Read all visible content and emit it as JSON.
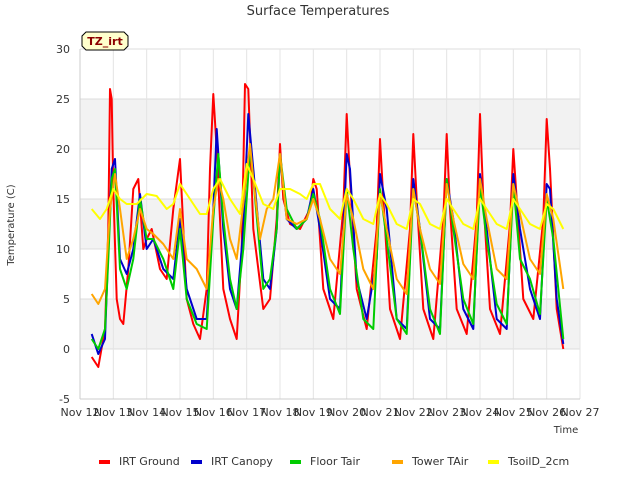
{
  "chart_data": {
    "type": "line",
    "title": "Surface Temperatures",
    "xlabel": "Time",
    "ylabel": "Temperature (C)",
    "badge": "TZ_irt",
    "xlim": [
      12,
      27
    ],
    "ylim": [
      -5,
      30
    ],
    "x_ticks": [
      {
        "v": 12,
        "label": "Nov 12"
      },
      {
        "v": 13,
        "label": "Nov 13"
      },
      {
        "v": 14,
        "label": "Nov 14"
      },
      {
        "v": 15,
        "label": "Nov 15"
      },
      {
        "v": 16,
        "label": "Nov 16"
      },
      {
        "v": 17,
        "label": "Nov 17"
      },
      {
        "v": 18,
        "label": "Nov 18"
      },
      {
        "v": 19,
        "label": "Nov 19"
      },
      {
        "v": 20,
        "label": "Nov 20"
      },
      {
        "v": 21,
        "label": "Nov 21"
      },
      {
        "v": 22,
        "label": "Nov 22"
      },
      {
        "v": 23,
        "label": "Nov 23"
      },
      {
        "v": 24,
        "label": "Nov 24"
      },
      {
        "v": 25,
        "label": "Nov 25"
      },
      {
        "v": 26,
        "label": "Nov 26"
      },
      {
        "v": 27,
        "label": "Nov 27"
      }
    ],
    "y_ticks": [
      -5,
      0,
      5,
      10,
      15,
      20,
      25,
      30
    ],
    "grid": "horizontal bands",
    "legend_position": "bottom",
    "series": [
      {
        "name": "IRT Ground",
        "color": "#ff0000",
        "x": [
          12.35,
          12.55,
          12.75,
          12.85,
          12.9,
          12.95,
          13.0,
          13.1,
          13.2,
          13.3,
          13.45,
          13.6,
          13.75,
          13.9,
          14.0,
          14.15,
          14.4,
          14.6,
          14.8,
          15.0,
          15.2,
          15.4,
          15.6,
          15.8,
          15.9,
          16.0,
          16.1,
          16.3,
          16.5,
          16.7,
          16.85,
          16.95,
          17.05,
          17.2,
          17.5,
          17.7,
          17.9,
          18.0,
          18.1,
          18.3,
          18.6,
          18.9,
          19.0,
          19.1,
          19.3,
          19.6,
          19.9,
          20.0,
          20.1,
          20.3,
          20.6,
          20.9,
          21.0,
          21.1,
          21.3,
          21.6,
          21.9,
          22.0,
          22.1,
          22.3,
          22.6,
          22.9,
          23.0,
          23.1,
          23.3,
          23.6,
          23.9,
          24.0,
          24.1,
          24.3,
          24.6,
          24.9,
          25.0,
          25.1,
          25.3,
          25.6,
          25.9,
          26.0,
          26.1,
          26.3,
          26.5
        ],
        "y": [
          -0.8,
          -1.8,
          2.0,
          12.0,
          26.0,
          25.0,
          16.0,
          5.0,
          3.0,
          2.5,
          8.0,
          16.0,
          17.0,
          10.0,
          11.0,
          12.0,
          8.0,
          7.0,
          14.0,
          19.0,
          5.0,
          2.5,
          1.0,
          6.0,
          18.0,
          25.5,
          20.0,
          6.0,
          3.0,
          1.0,
          10.0,
          26.5,
          26.0,
          12.0,
          4.0,
          5.0,
          13.0,
          20.5,
          15.0,
          12.5,
          12.0,
          14.0,
          17.0,
          16.0,
          6.0,
          3.0,
          14.0,
          23.5,
          17.0,
          6.0,
          2.0,
          12.0,
          21.0,
          15.0,
          4.0,
          1.0,
          12.0,
          21.5,
          15.0,
          4.0,
          1.0,
          13.0,
          21.5,
          14.0,
          4.0,
          1.5,
          13.0,
          23.5,
          15.0,
          4.0,
          1.5,
          12.5,
          20.0,
          15.0,
          5.0,
          3.0,
          13.0,
          23.0,
          18.0,
          4.0,
          0.0
        ]
      },
      {
        "name": "IRT Canopy",
        "color": "#0000cc",
        "x": [
          12.35,
          12.55,
          12.75,
          12.85,
          12.95,
          13.05,
          13.2,
          13.4,
          13.6,
          13.8,
          14.0,
          14.2,
          14.5,
          14.8,
          15.0,
          15.2,
          15.5,
          15.8,
          16.0,
          16.1,
          16.3,
          16.5,
          16.7,
          16.9,
          17.05,
          17.2,
          17.5,
          17.7,
          17.9,
          18.0,
          18.2,
          18.5,
          18.8,
          19.0,
          19.2,
          19.5,
          19.8,
          20.0,
          20.1,
          20.3,
          20.6,
          20.9,
          21.0,
          21.2,
          21.5,
          21.8,
          22.0,
          22.2,
          22.5,
          22.8,
          23.0,
          23.2,
          23.5,
          23.8,
          24.0,
          24.2,
          24.5,
          24.8,
          25.0,
          25.2,
          25.5,
          25.8,
          26.0,
          26.1,
          26.3,
          26.5
        ],
        "y": [
          1.5,
          -0.5,
          1.0,
          10.0,
          18.0,
          19.0,
          9.0,
          7.5,
          10.0,
          15.5,
          10.0,
          11.0,
          8.0,
          7.0,
          13.0,
          6.0,
          3.0,
          3.0,
          14.0,
          22.0,
          12.0,
          6.0,
          4.0,
          12.0,
          23.5,
          18.0,
          7.0,
          6.0,
          12.0,
          19.5,
          13.0,
          12.0,
          13.0,
          16.0,
          12.0,
          5.0,
          4.0,
          19.5,
          18.0,
          7.0,
          3.0,
          9.0,
          17.5,
          14.0,
          3.0,
          2.0,
          17.0,
          12.0,
          3.0,
          2.0,
          17.0,
          13.0,
          4.0,
          2.0,
          17.5,
          12.0,
          3.0,
          2.0,
          17.5,
          12.0,
          6.0,
          3.0,
          16.5,
          16.0,
          5.0,
          0.5
        ]
      },
      {
        "name": "Floor Tair",
        "color": "#00cc00",
        "x": [
          12.35,
          12.55,
          12.75,
          12.85,
          12.95,
          13.05,
          13.2,
          13.4,
          13.6,
          13.8,
          14.0,
          14.2,
          14.5,
          14.8,
          15.0,
          15.2,
          15.5,
          15.8,
          16.0,
          16.15,
          16.3,
          16.5,
          16.7,
          16.9,
          17.1,
          17.2,
          17.5,
          17.7,
          17.9,
          18.0,
          18.2,
          18.5,
          18.8,
          19.0,
          19.2,
          19.5,
          19.8,
          20.0,
          20.2,
          20.5,
          20.8,
          21.0,
          21.2,
          21.5,
          21.8,
          22.0,
          22.2,
          22.5,
          22.8,
          23.0,
          23.2,
          23.5,
          23.8,
          24.0,
          24.2,
          24.5,
          24.8,
          25.0,
          25.2,
          25.5,
          25.8,
          26.0,
          26.2,
          26.5
        ],
        "y": [
          1.0,
          0.0,
          2.0,
          9.0,
          17.0,
          18.0,
          8.0,
          6.0,
          9.0,
          15.0,
          11.0,
          11.0,
          9.0,
          6.0,
          12.0,
          5.0,
          2.5,
          2.0,
          13.0,
          19.5,
          13.0,
          7.0,
          4.0,
          10.0,
          20.0,
          17.0,
          6.0,
          7.0,
          12.0,
          19.5,
          14.0,
          12.0,
          13.0,
          15.5,
          13.0,
          6.0,
          3.5,
          16.0,
          10.0,
          3.0,
          2.0,
          16.0,
          11.0,
          3.0,
          1.5,
          16.0,
          12.0,
          4.0,
          1.5,
          17.0,
          12.0,
          5.0,
          2.5,
          16.5,
          11.0,
          4.5,
          2.5,
          16.5,
          9.0,
          7.0,
          3.5,
          15.0,
          11.0,
          1.0
        ]
      },
      {
        "name": "Tower TAir",
        "color": "#ffa500",
        "x": [
          12.35,
          12.55,
          12.75,
          12.9,
          13.05,
          13.2,
          13.4,
          13.6,
          13.8,
          14.0,
          14.2,
          14.5,
          14.8,
          15.0,
          15.2,
          15.5,
          15.8,
          16.0,
          16.15,
          16.3,
          16.5,
          16.7,
          16.9,
          17.1,
          17.2,
          17.4,
          17.6,
          17.8,
          18.0,
          18.2,
          18.5,
          18.8,
          19.0,
          19.2,
          19.5,
          19.8,
          20.0,
          20.2,
          20.5,
          20.8,
          21.0,
          21.2,
          21.5,
          21.8,
          22.0,
          22.2,
          22.5,
          22.8,
          23.0,
          23.2,
          23.5,
          23.8,
          24.0,
          24.2,
          24.5,
          24.8,
          25.0,
          25.2,
          25.5,
          25.8,
          26.0,
          26.2,
          26.5
        ],
        "y": [
          5.5,
          4.5,
          6.0,
          14.0,
          17.5,
          14.0,
          9.0,
          11.0,
          14.0,
          12.0,
          11.5,
          10.5,
          9.0,
          14.0,
          9.0,
          8.0,
          6.0,
          14.0,
          17.0,
          15.0,
          11.0,
          9.0,
          14.5,
          20.5,
          17.0,
          11.0,
          14.0,
          15.0,
          19.5,
          13.0,
          12.5,
          13.0,
          15.0,
          13.0,
          9.0,
          7.5,
          15.5,
          13.0,
          8.0,
          6.0,
          15.5,
          12.0,
          7.0,
          5.5,
          16.0,
          12.0,
          8.0,
          6.5,
          16.5,
          13.0,
          8.5,
          7.0,
          17.0,
          13.0,
          8.0,
          7.0,
          16.5,
          13.5,
          9.0,
          7.5,
          15.5,
          13.0,
          6.0
        ]
      },
      {
        "name": "TsoilD_2cm",
        "color": "#ffff00",
        "x": [
          12.35,
          12.6,
          12.8,
          13.0,
          13.2,
          13.4,
          13.7,
          14.0,
          14.3,
          14.6,
          14.8,
          15.0,
          15.3,
          15.6,
          15.8,
          16.0,
          16.2,
          16.5,
          16.8,
          17.0,
          17.2,
          17.5,
          17.8,
          18.0,
          18.3,
          18.6,
          18.8,
          19.0,
          19.2,
          19.5,
          19.8,
          20.0,
          20.2,
          20.5,
          20.8,
          21.0,
          21.2,
          21.5,
          21.8,
          22.0,
          22.2,
          22.5,
          22.8,
          23.0,
          23.2,
          23.5,
          23.8,
          24.0,
          24.2,
          24.5,
          24.8,
          25.0,
          25.2,
          25.5,
          25.8,
          26.0,
          26.2,
          26.5
        ],
        "y": [
          14.0,
          13.0,
          14.0,
          16.0,
          15.0,
          14.5,
          14.5,
          15.5,
          15.3,
          14.0,
          14.5,
          16.5,
          15.0,
          13.5,
          13.5,
          16.0,
          17.0,
          15.0,
          13.5,
          18.5,
          17.0,
          14.5,
          14.0,
          16.0,
          16.0,
          15.5,
          15.0,
          16.5,
          16.5,
          14.0,
          13.0,
          16.0,
          15.0,
          13.0,
          12.5,
          15.5,
          14.5,
          12.5,
          12.0,
          15.0,
          14.5,
          12.5,
          12.0,
          15.0,
          14.0,
          12.5,
          12.0,
          15.0,
          14.0,
          12.5,
          12.0,
          15.0,
          14.0,
          12.5,
          12.0,
          14.5,
          14.0,
          12.0
        ]
      }
    ]
  }
}
